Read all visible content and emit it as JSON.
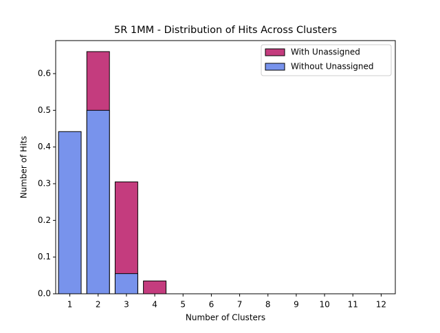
{
  "chart_data": {
    "type": "bar",
    "title": "5R 1MM - Distribution of Hits Across Clusters",
    "x_label": "Number of Clusters",
    "y_label": "Number of Hits",
    "categories": [
      "1",
      "2",
      "3",
      "4",
      "5",
      "6",
      "7",
      "8",
      "9",
      "10",
      "11",
      "12"
    ],
    "series": [
      {
        "name": "With Unassigned",
        "color": "#c43c7e",
        "values": [
          0,
          0.66,
          0.305,
          0.035,
          0,
          0,
          0,
          0,
          0,
          0,
          0,
          0
        ]
      },
      {
        "name": "Without Unassigned",
        "color": "#7893ec",
        "values": [
          0.442,
          0.5,
          0.055,
          0,
          0,
          0,
          0,
          0,
          0,
          0,
          0,
          0
        ]
      }
    ],
    "ylim": [
      0,
      0.69
    ],
    "yticks": [
      {
        "value": 0,
        "label": "0.0"
      },
      0.1,
      0.2,
      0.3,
      0.4,
      0.5,
      0.6
    ],
    "grid": false,
    "legend": "upper-right"
  }
}
